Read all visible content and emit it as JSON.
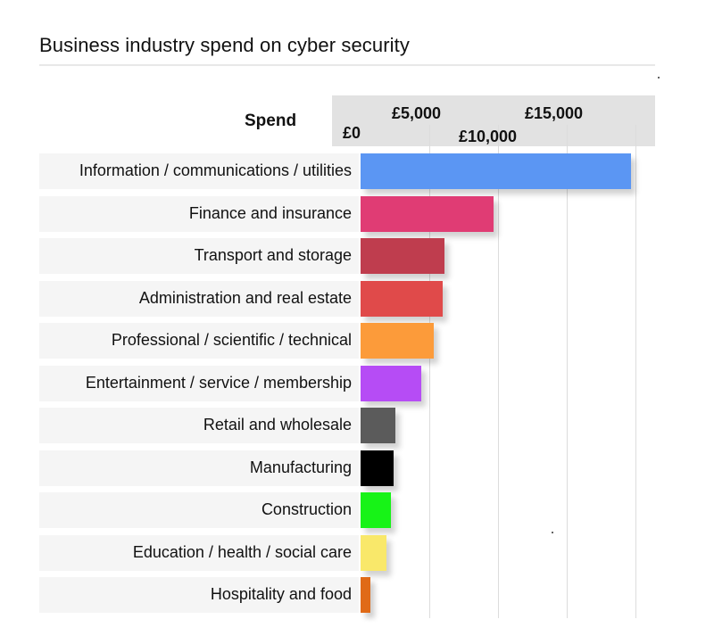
{
  "chart_data": {
    "type": "bar",
    "orientation": "horizontal",
    "title": "Business industry spend on cyber security",
    "axis_header": "Spend",
    "x_ticks": [
      {
        "value": 0,
        "label": "£0"
      },
      {
        "value": 5000,
        "label": "£5,000"
      },
      {
        "value": 10000,
        "label": "£10,000"
      },
      {
        "value": 15000,
        "label": "£15,000"
      }
    ],
    "xlim": [
      0,
      20000
    ],
    "grid": true,
    "categories": [
      "Information / communications / utilities",
      "Finance and insurance",
      "Transport and storage",
      "Administration and real estate",
      "Professional / scientific / technical",
      "Entertainment / service / membership",
      "Retail and wholesale",
      "Manufacturing",
      "Construction",
      "Education / health / social care",
      "Hospitality and food"
    ],
    "values": [
      19700,
      9700,
      6100,
      6000,
      5300,
      4400,
      2500,
      2400,
      2200,
      1900,
      700
    ],
    "colors": [
      "#5b96f3",
      "#e03c74",
      "#bf3d4e",
      "#e04a4a",
      "#fc9b3a",
      "#b64cf5",
      "#5b5b5b",
      "#000000",
      "#17f317",
      "#f9e86a",
      "#e06a17"
    ]
  }
}
